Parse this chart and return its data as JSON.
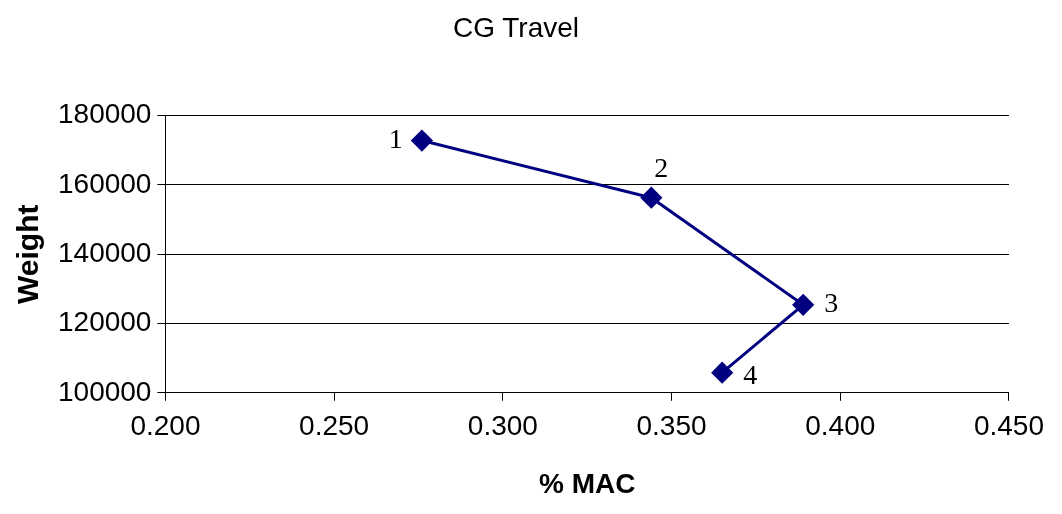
{
  "chart_data": {
    "type": "line",
    "title": "CG Travel",
    "xlabel": "% MAC",
    "ylabel": "Weight",
    "series": [
      {
        "color": "#000080",
        "x": [
          0.276,
          0.344,
          0.389,
          0.365
        ],
        "values": [
          172800,
          156300,
          125400,
          105800
        ]
      }
    ],
    "xlim": [
      0.2,
      0.45
    ],
    "xticks": [
      {
        "value": 0.2,
        "label": "0.200"
      },
      {
        "value": 0.25,
        "label": "0.250"
      },
      {
        "value": 0.3,
        "label": "0.300"
      },
      {
        "value": 0.35,
        "label": "0.350"
      },
      {
        "value": 0.4,
        "label": "0.400"
      },
      {
        "value": 0.45,
        "label": "0.450"
      }
    ],
    "ylim": [
      100000,
      180000
    ],
    "yticks": [
      100000,
      120000,
      140000,
      160000,
      180000
    ],
    "grid": "y",
    "legend": false,
    "marker": "diamond",
    "line_style": "solid",
    "annotations": [
      {
        "text": "1",
        "x": 0.276,
        "y": 172800
      },
      {
        "text": "2",
        "x": 0.344,
        "y": 156300
      },
      {
        "text": "3",
        "x": 0.389,
        "y": 125400
      },
      {
        "text": "4",
        "x": 0.365,
        "y": 105800
      }
    ]
  }
}
